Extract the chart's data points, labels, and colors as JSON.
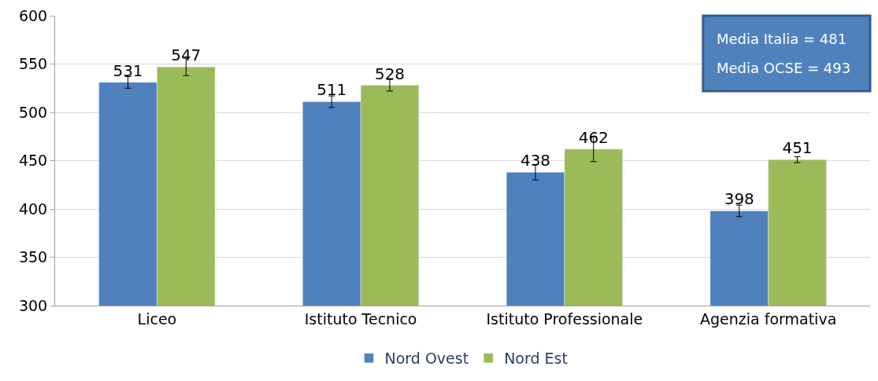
{
  "chart_data": {
    "type": "bar",
    "categories": [
      "Liceo",
      "Istituto Tecnico",
      "Istituto Professionale",
      "Agenzia formativa"
    ],
    "series": [
      {
        "name": "Nord Ovest",
        "color": "#4f81bd",
        "values": [
          531,
          511,
          438,
          398
        ],
        "errors": [
          6,
          6,
          8,
          6
        ]
      },
      {
        "name": "Nord Est",
        "color": "#9bbb59",
        "values": [
          547,
          528,
          462,
          451
        ],
        "errors": [
          9,
          6,
          13,
          3
        ]
      }
    ],
    "ylim": [
      300,
      600
    ],
    "yticks": [
      300,
      350,
      400,
      450,
      500,
      550,
      600
    ],
    "grid": "y",
    "legend": "bottom",
    "data_labels": true,
    "annotations": [
      "Media Italia = 481",
      "Media OCSE = 493"
    ]
  }
}
